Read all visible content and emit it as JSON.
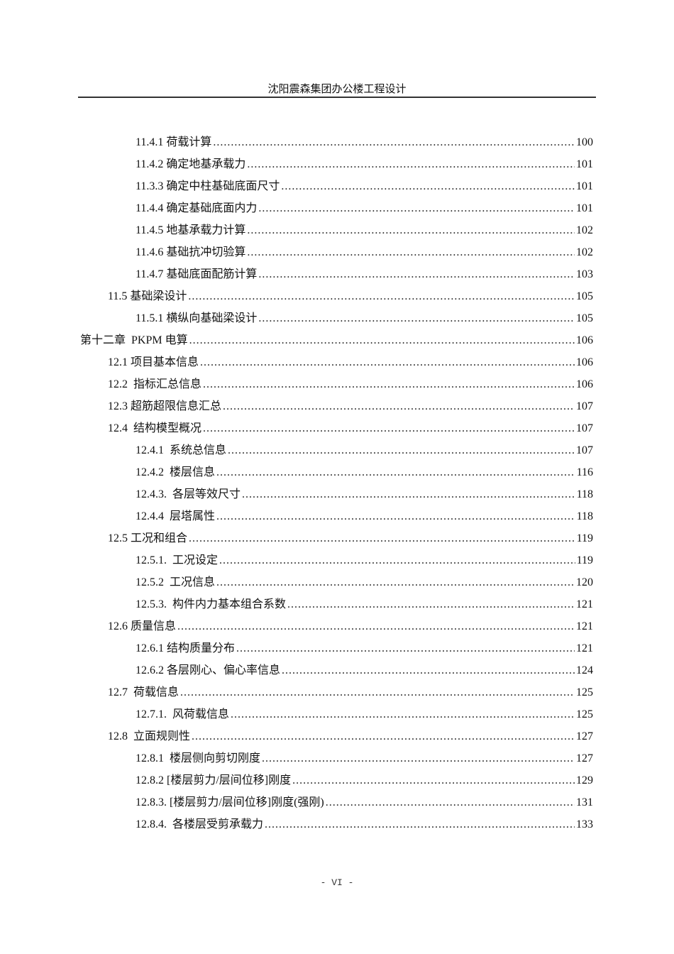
{
  "header": {
    "title": "沈阳震森集团办公楼工程设计"
  },
  "toc": [
    {
      "level": 2,
      "label": "11.4.1 荷载计算",
      "page": "100"
    },
    {
      "level": 2,
      "label": "11.4.2 确定地基承载力",
      "page": "101"
    },
    {
      "level": 2,
      "label": "11.3.3 确定中柱基础底面尺寸",
      "page": "101"
    },
    {
      "level": 2,
      "label": "11.4.4 确定基础底面内力",
      "page": "101"
    },
    {
      "level": 2,
      "label": "11.4.5 地基承载力计算",
      "page": "102"
    },
    {
      "level": 2,
      "label": "11.4.6 基础抗冲切验算",
      "page": "102"
    },
    {
      "level": 2,
      "label": "11.4.7 基础底面配筋计算",
      "page": "103"
    },
    {
      "level": 1,
      "label": "11.5 基础梁设计",
      "page": "105"
    },
    {
      "level": 2,
      "label": "11.5.1 横纵向基础梁设计",
      "page": "105"
    },
    {
      "level": 0,
      "label": "第十二章  PKPM 电算",
      "page": "106"
    },
    {
      "level": 1,
      "label": "12.1 项目基本信息",
      "page": "106"
    },
    {
      "level": 1,
      "label": "12.2  指标汇总信息",
      "page": "106"
    },
    {
      "level": 1,
      "label": "12.3 超筋超限信息汇总",
      "page": "107"
    },
    {
      "level": 1,
      "label": "12.4  结构模型概况",
      "page": "107"
    },
    {
      "level": 2,
      "label": "12.4.1  系统总信息",
      "page": "107"
    },
    {
      "level": 2,
      "label": "12.4.2  楼层信息",
      "page": "116"
    },
    {
      "level": 2,
      "label": "12.4.3.  各层等效尺寸",
      "page": "118"
    },
    {
      "level": 2,
      "label": "12.4.4  层塔属性",
      "page": "118"
    },
    {
      "level": 1,
      "label": "12.5 工况和组合",
      "page": "119"
    },
    {
      "level": 2,
      "label": "12.5.1.  工况设定",
      "page": "119"
    },
    {
      "level": 2,
      "label": "12.5.2  工况信息",
      "page": "120"
    },
    {
      "level": 2,
      "label": "12.5.3.  构件内力基本组合系数",
      "page": "121"
    },
    {
      "level": 1,
      "label": "12.6 质量信息",
      "page": "121"
    },
    {
      "level": 2,
      "label": "12.6.1 结构质量分布",
      "page": "121"
    },
    {
      "level": 2,
      "label": "12.6.2 各层刚心、偏心率信息",
      "page": "124"
    },
    {
      "level": 1,
      "label": "12.7  荷载信息",
      "page": "125"
    },
    {
      "level": 2,
      "label": "12.7.1.  风荷载信息",
      "page": "125"
    },
    {
      "level": 1,
      "label": "12.8  立面规则性",
      "page": "127"
    },
    {
      "level": 2,
      "label": "12.8.1  楼层侧向剪切刚度",
      "page": "127"
    },
    {
      "level": 2,
      "label": "12.8.2 [楼层剪力/层间位移]刚度",
      "page": "129"
    },
    {
      "level": 2,
      "label": "12.8.3. [楼层剪力/层间位移]刚度(强刚)",
      "page": "131"
    },
    {
      "level": 2,
      "label": "12.8.4.  各楼层受剪承载力",
      "page": "133"
    }
  ],
  "footer": {
    "page_number": "- VI -"
  }
}
